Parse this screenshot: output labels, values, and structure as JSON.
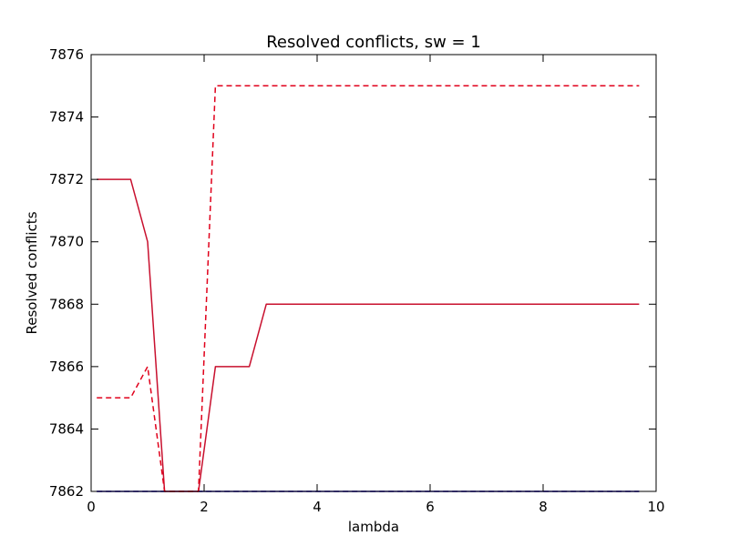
{
  "chart_data": {
    "type": "line",
    "title": "Resolved conflicts, sw = 1",
    "xlabel": "lambda",
    "ylabel": "Resolved conflicts",
    "xlim": [
      0,
      10
    ],
    "ylim": [
      7862,
      7876
    ],
    "xticks": [
      0,
      2,
      4,
      6,
      8,
      10
    ],
    "yticks": [
      7862,
      7864,
      7866,
      7868,
      7870,
      7872,
      7874,
      7876
    ],
    "grid": false,
    "series": [
      {
        "style": "solid",
        "color": "#2b1fb0",
        "x": [
          0.1,
          9.7
        ],
        "y": [
          7862,
          7862
        ]
      },
      {
        "style": "dashed",
        "color": "#2b1fb0",
        "x": [
          0.1,
          9.7
        ],
        "y": [
          7862,
          7862
        ]
      },
      {
        "style": "solid",
        "color": "#c8102e",
        "x": [
          0.1,
          0.7,
          1.0,
          1.3,
          1.6,
          1.9,
          2.2,
          2.5,
          2.8,
          3.1,
          3.4,
          4.0,
          5.0,
          6.0,
          7.0,
          8.0,
          9.0,
          9.7
        ],
        "y": [
          7872,
          7872,
          7870,
          7862,
          7862,
          7862,
          7866,
          7866,
          7866,
          7868,
          7868,
          7868,
          7868,
          7868,
          7868,
          7868,
          7868,
          7868
        ]
      },
      {
        "style": "dashed",
        "color": "#e0001b",
        "x": [
          0.1,
          0.7,
          1.0,
          1.3,
          1.6,
          1.9,
          2.2,
          2.5,
          3.0,
          4.0,
          5.0,
          6.0,
          7.0,
          8.0,
          9.0,
          9.7
        ],
        "y": [
          7865,
          7865,
          7866,
          7862,
          7862,
          7862,
          7875,
          7875,
          7875,
          7875,
          7875,
          7875,
          7875,
          7875,
          7875,
          7875
        ]
      }
    ]
  }
}
